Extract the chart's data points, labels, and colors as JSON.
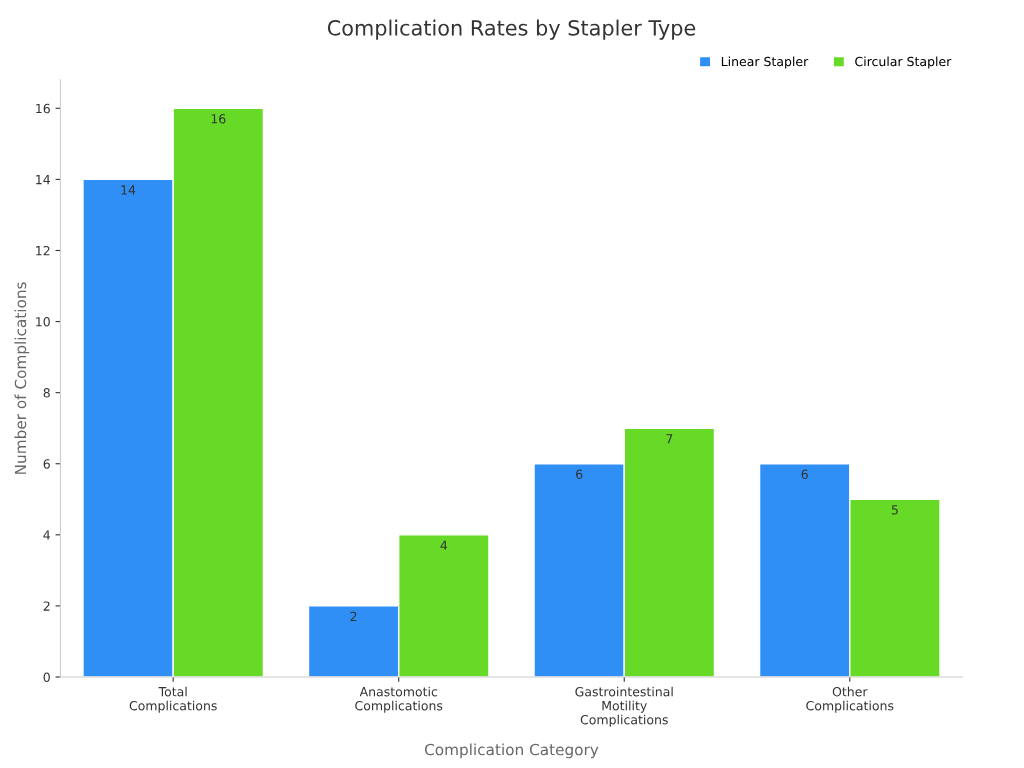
{
  "chart_data": {
    "type": "bar",
    "title": "Complication Rates by Stapler Type",
    "xlabel": "Complication Category",
    "ylabel": "Number of Complications",
    "categories": [
      "Total\nComplications",
      "Anastomotic\nComplications",
      "Gastrointestinal\nMotility\nComplications",
      "Other\nComplications"
    ],
    "series": [
      {
        "name": "Linear Stapler",
        "color": "#2f8ff5",
        "values": [
          14,
          2,
          6,
          6
        ]
      },
      {
        "name": "Circular Stapler",
        "color": "#66da26",
        "values": [
          16,
          4,
          7,
          5
        ]
      }
    ],
    "ylim": [
      0,
      16.8
    ],
    "yticks": [
      0,
      2,
      4,
      6,
      8,
      10,
      12,
      14,
      16
    ],
    "grid": false,
    "legend": "top right",
    "data_labels": true
  }
}
